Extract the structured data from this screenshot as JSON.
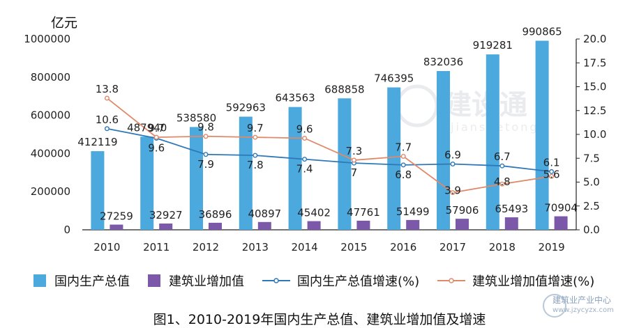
{
  "chart_data": {
    "type": "bar",
    "title": "",
    "y_unit": "亿元",
    "categories": [
      "2010",
      "2011",
      "2012",
      "2013",
      "2014",
      "2015",
      "2016",
      "2017",
      "2018",
      "2019"
    ],
    "ylim_left": [
      0,
      1000000
    ],
    "yticks_left": [
      "0",
      "200000",
      "400000",
      "600000",
      "800000",
      "1000000"
    ],
    "ylim_right": [
      0,
      20
    ],
    "yticks_right": [
      "0.0",
      "2.5",
      "5.0",
      "7.5",
      "10.0",
      "12.5",
      "15.0",
      "17.5",
      "20.0"
    ],
    "series": [
      {
        "name": "国内生产总值",
        "kind": "bar",
        "axis": "left",
        "color": "#4ba9dd",
        "values": [
          412119,
          487940,
          538580,
          592963,
          643563,
          688858,
          746395,
          832036,
          919281,
          990865
        ]
      },
      {
        "name": "建筑业增加值",
        "kind": "bar",
        "axis": "left",
        "color": "#7b59a8",
        "values": [
          27259,
          32927,
          36896,
          40897,
          45402,
          47761,
          51499,
          57906,
          65493,
          70904
        ]
      },
      {
        "name": "国内生产总值增速(%)",
        "kind": "line",
        "axis": "right",
        "color": "#2f78b8",
        "values": [
          10.6,
          9.6,
          7.9,
          7.8,
          7.4,
          7,
          6.8,
          6.9,
          6.7,
          6.1
        ]
      },
      {
        "name": "建筑业增加值增速(%)",
        "kind": "line",
        "axis": "right",
        "color": "#e0896a",
        "values": [
          13.8,
          9.7,
          9.8,
          9.7,
          9.6,
          7.3,
          7.7,
          3.9,
          4.8,
          5.6
        ]
      }
    ],
    "legend_position": "bottom",
    "grid": false
  },
  "caption": "图1、2010-2019年国内生产总值、建筑业增加值及增速",
  "watermark": {
    "center_text": "建设通",
    "center_sub": "jianshetong",
    "corner_title": "建筑业产业中心",
    "corner_url": "www.jzycyzx.com"
  }
}
